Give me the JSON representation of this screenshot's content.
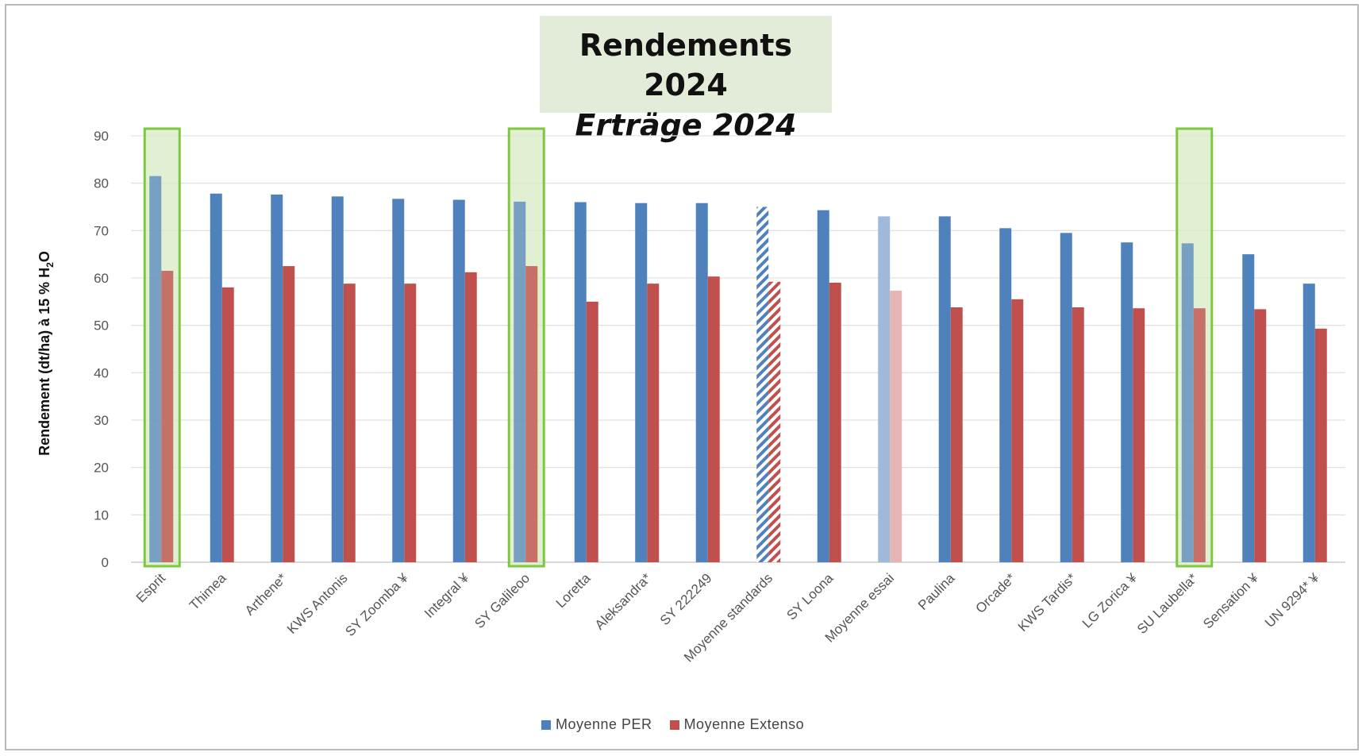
{
  "title": "Rendements 2024",
  "subtitle": "Erträge 2024",
  "colors": {
    "per": "#4f81bd",
    "extenso": "#c0504d",
    "per_light": "#9fb9da",
    "extenso_light": "#e6b4b3",
    "highlight_fill": "#d7eac3",
    "highlight_border": "#7ec840"
  },
  "chart_data": {
    "type": "bar",
    "title": "Rendements 2024",
    "subtitle": "Erträge 2024",
    "ylabel_parts": [
      "Rendement (dt/ha) à 15 % H",
      "2",
      "O"
    ],
    "ylabel": "Rendement (dt/ha) à 15 % H2O",
    "xlabel": "",
    "ylim": [
      0,
      90
    ],
    "yticks": [
      0,
      10,
      20,
      30,
      40,
      50,
      60,
      70,
      80,
      90
    ],
    "grid": true,
    "legend_position": "bottom-center",
    "categories": [
      "Esprit",
      "Thimea",
      "Arthene*",
      "KWS Antonis",
      "SY Zoomba ¥",
      "Integral ¥",
      "SY Galileoo",
      "Loretta",
      "Aleksandra*",
      "SY 222249",
      "Moyenne standards",
      "SY Loona",
      "Moyenne essai",
      "Paulina",
      "Orcade*",
      "KWS Tardis*",
      "LG Zorica ¥",
      "SU Laubella*",
      "Sensation ¥",
      "UN 9294* ¥"
    ],
    "series": [
      {
        "name": "Moyenne PER",
        "values": [
          81.5,
          77.8,
          77.6,
          77.2,
          76.7,
          76.5,
          76.1,
          76.0,
          75.8,
          75.8,
          75.0,
          74.3,
          73.0,
          73.0,
          70.5,
          69.5,
          67.5,
          67.3,
          65.0,
          58.8
        ]
      },
      {
        "name": "Moyenne Extenso",
        "values": [
          61.5,
          58.0,
          62.5,
          58.8,
          58.8,
          61.2,
          62.5,
          55.0,
          58.8,
          60.3,
          59.2,
          59.0,
          57.3,
          53.8,
          55.5,
          53.8,
          53.6,
          53.6,
          53.4,
          49.3
        ]
      }
    ],
    "highlighted": [
      "Esprit",
      "SY Galileoo",
      "SU Laubella*"
    ],
    "hatched": [
      "Moyenne standards"
    ],
    "faded": [
      "Moyenne essai"
    ]
  }
}
